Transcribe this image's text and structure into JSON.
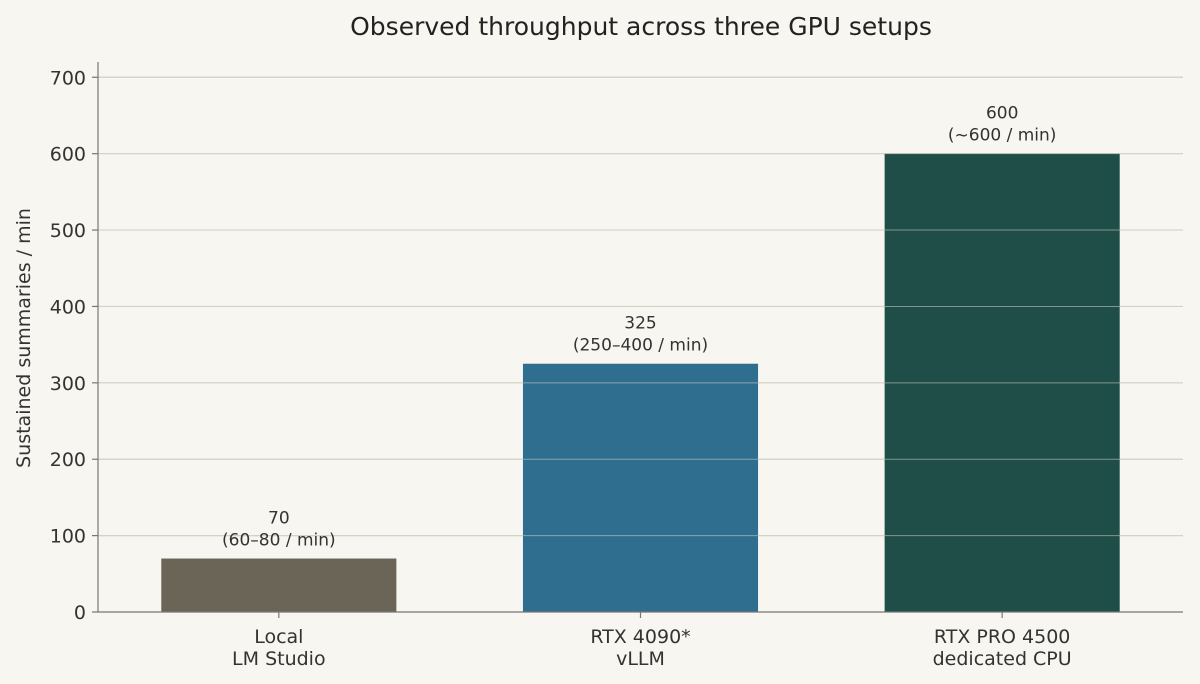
{
  "chart_data": {
    "type": "bar",
    "title": "Observed throughput across three GPU setups",
    "xlabel": "",
    "ylabel": "Sustained summaries / min",
    "ylim": [
      0,
      720
    ],
    "yticks": [
      0,
      100,
      200,
      300,
      400,
      500,
      600,
      700
    ],
    "grid": "horizontal",
    "legend": "none",
    "categories": [
      [
        "Local",
        "LM Studio"
      ],
      [
        "RTX 4090*",
        "vLLM"
      ],
      [
        "RTX PRO 4500",
        "dedicated CPU"
      ]
    ],
    "values": [
      70,
      325,
      600
    ],
    "value_labels": [
      "70",
      "325",
      "600"
    ],
    "range_labels": [
      "(60–80 / min)",
      "(250–400 / min)",
      "(~600 / min)"
    ],
    "colors": [
      "#6b6558",
      "#306e8f",
      "#1f4e48"
    ]
  },
  "style": {
    "background": "#f7f6f0",
    "grid_color": "#d3d2c6",
    "axis_color": "#777777"
  }
}
